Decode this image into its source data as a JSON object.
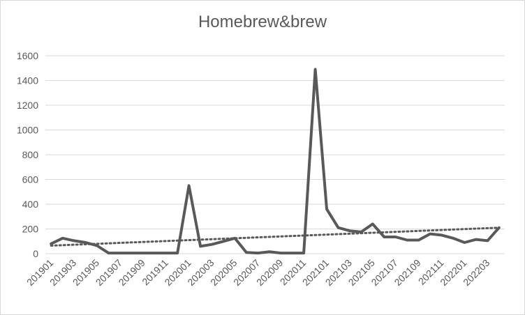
{
  "chart_data": {
    "type": "line",
    "title": "Homebrew&brew",
    "xlabel": "",
    "ylabel": "",
    "ylim": [
      0,
      1600
    ],
    "yticks": [
      0,
      200,
      400,
      600,
      800,
      1000,
      1200,
      1400,
      1600
    ],
    "grid": true,
    "legend": "none",
    "trendline": {
      "type": "linear",
      "style": "dotted",
      "start_value": 65,
      "end_value": 210
    },
    "x": [
      "201901",
      "201902",
      "201903",
      "201904",
      "201905",
      "201906",
      "201907",
      "201908",
      "201909",
      "201910",
      "201911",
      "201912",
      "202001",
      "202002",
      "202003",
      "202004",
      "202005",
      "202006",
      "202007",
      "202008",
      "202009",
      "202010",
      "202011",
      "202012",
      "202101",
      "202102",
      "202103",
      "202104",
      "202105",
      "202106",
      "202107",
      "202108",
      "202109",
      "202110",
      "202111",
      "202112",
      "202201",
      "202202",
      "202203",
      "202204"
    ],
    "tick_labels": [
      "201901",
      "201903",
      "201905",
      "201907",
      "201909",
      "201911",
      "202001",
      "202003",
      "202005",
      "202007",
      "202009",
      "202011",
      "202101",
      "202103",
      "202105",
      "202107",
      "202109",
      "202111",
      "202201",
      "202203"
    ],
    "series": [
      {
        "values": [
          80,
          125,
          105,
          90,
          65,
          5,
          5,
          5,
          5,
          5,
          5,
          5,
          550,
          60,
          75,
          100,
          125,
          10,
          5,
          15,
          5,
          5,
          5,
          1490,
          360,
          210,
          185,
          175,
          240,
          135,
          135,
          110,
          110,
          160,
          150,
          125,
          90,
          115,
          105,
          210
        ]
      }
    ],
    "colors": {
      "line": "#595959",
      "trend": "#595959",
      "grid": "#d9d9d9"
    }
  }
}
